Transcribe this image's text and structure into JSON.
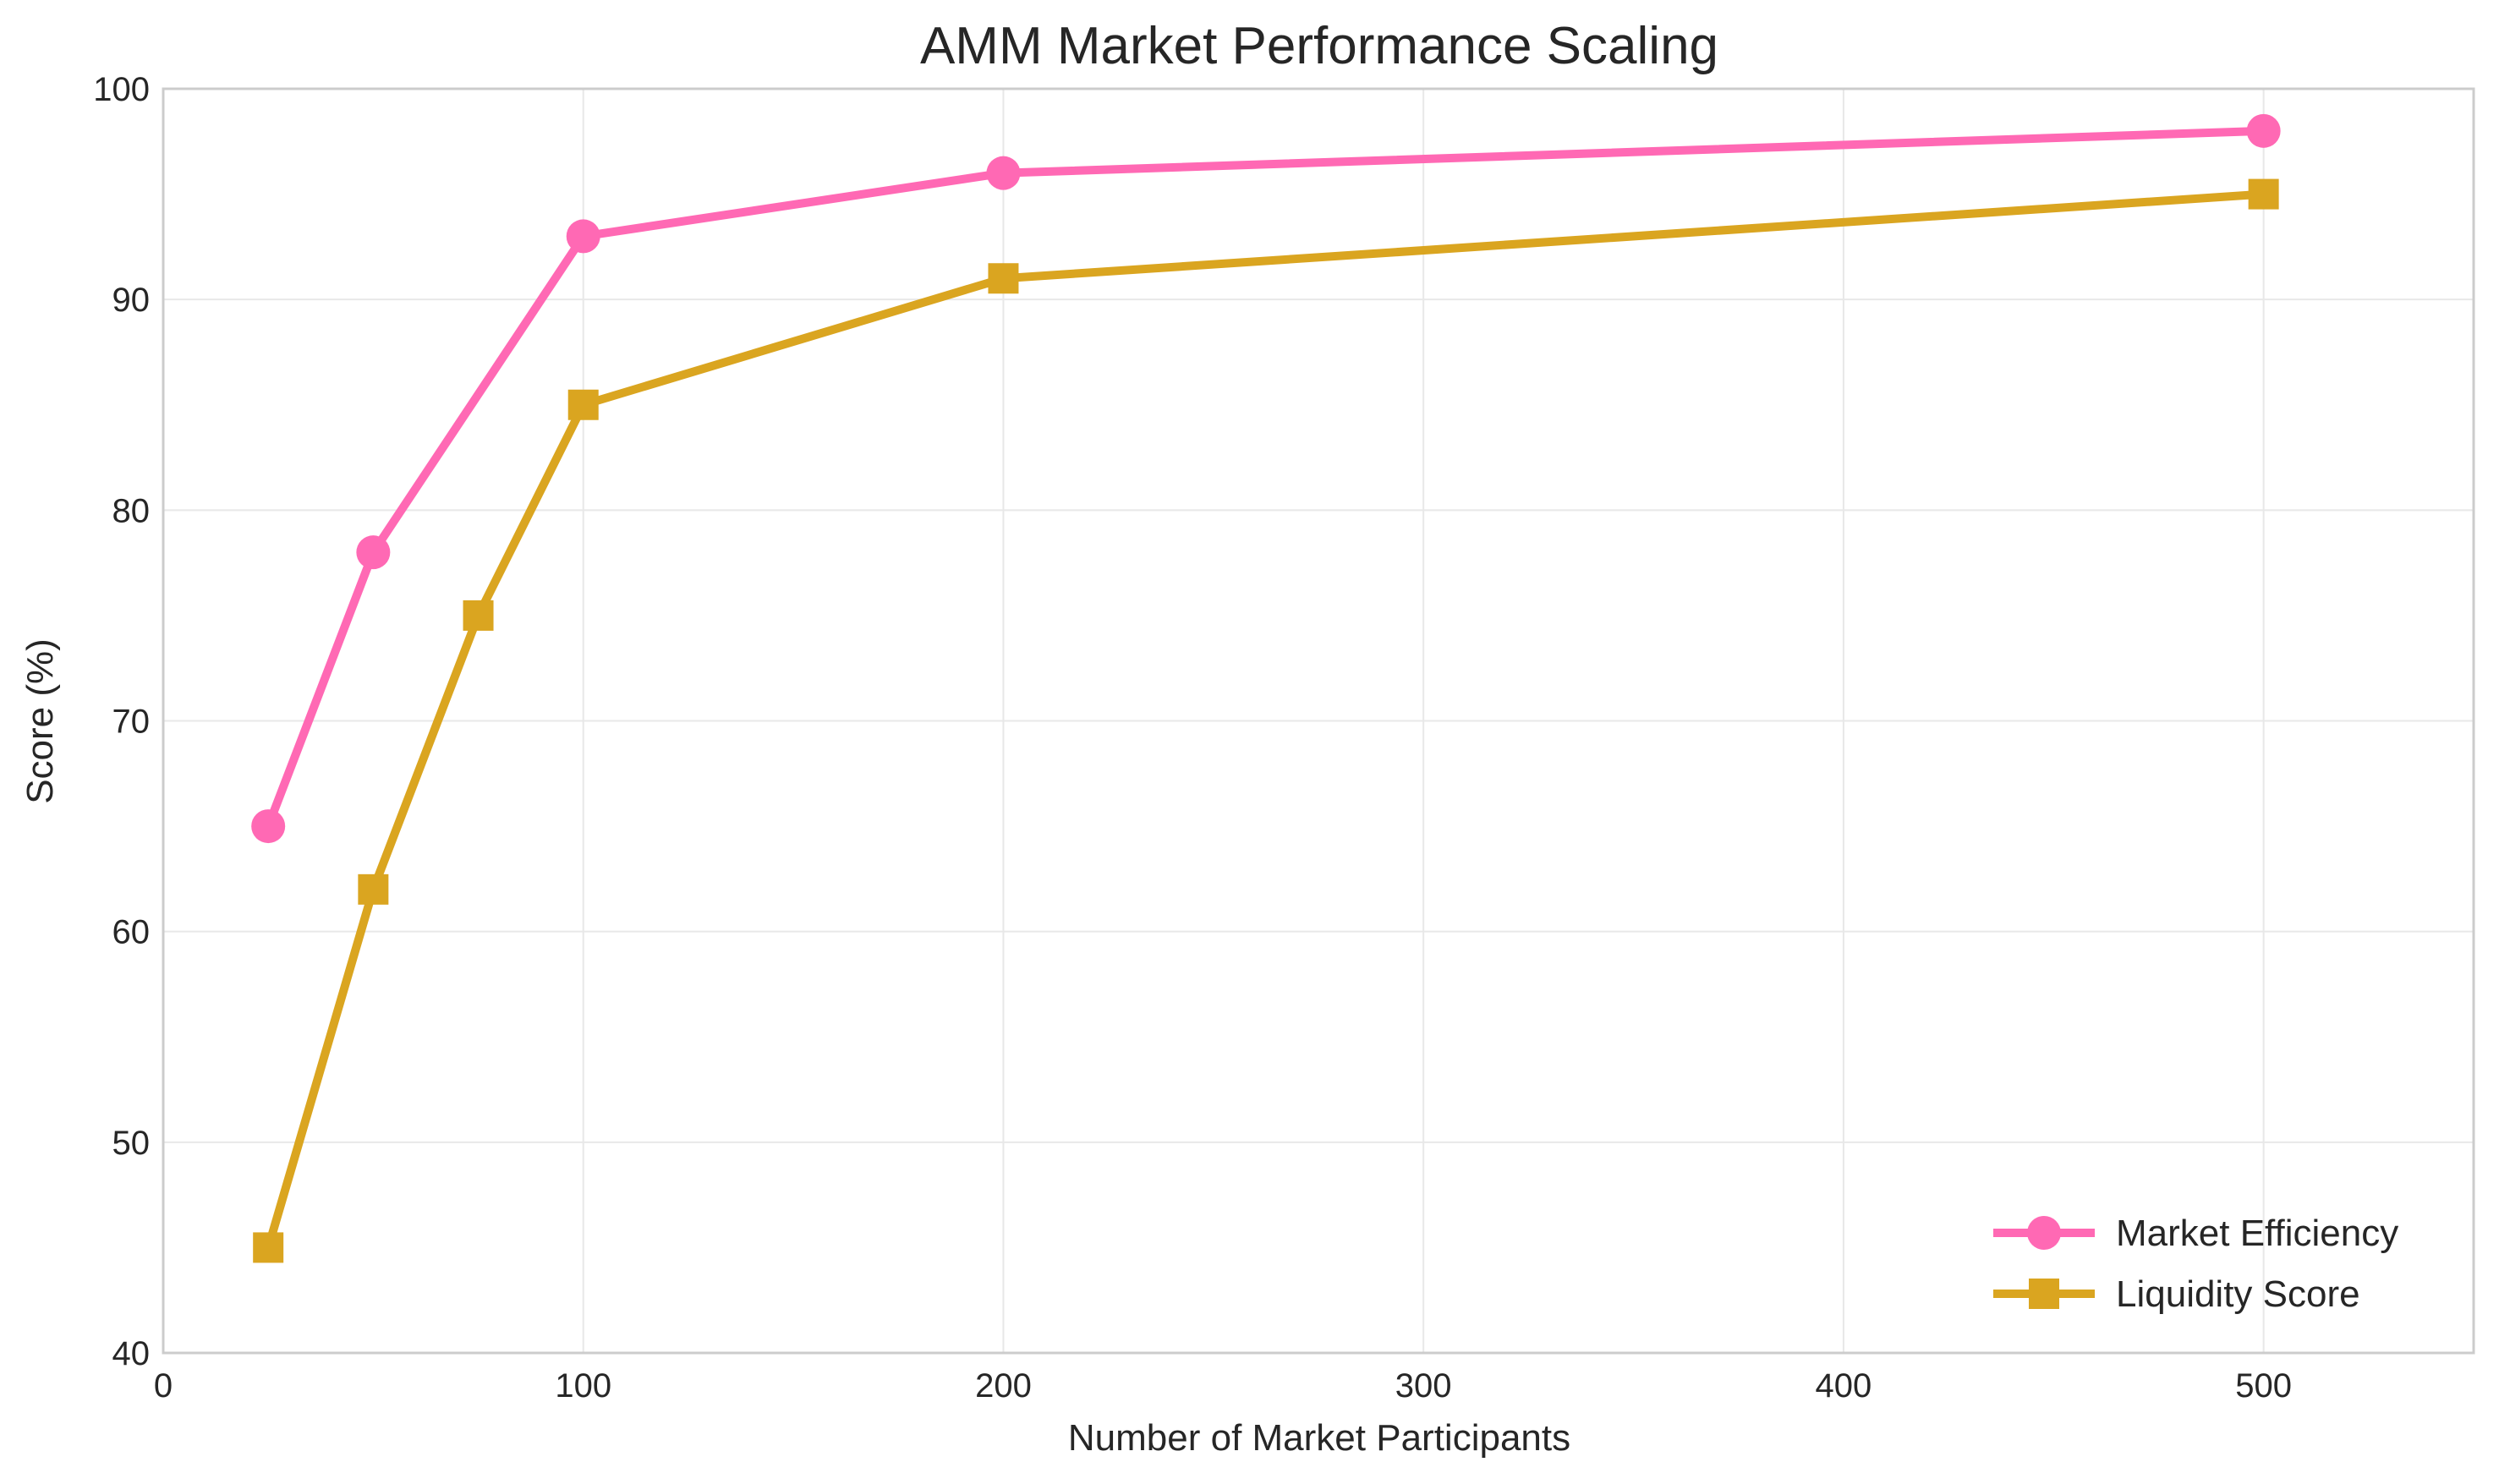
{
  "chart_data": {
    "type": "line",
    "title": "AMM Market Performance Scaling",
    "xlabel": "Number of Market Participants",
    "ylabel": "Score (%)",
    "xlim": [
      0,
      550
    ],
    "ylim": [
      40,
      100
    ],
    "xticks": [
      0,
      100,
      200,
      300,
      400,
      500
    ],
    "yticks": [
      40,
      50,
      60,
      70,
      80,
      90,
      100
    ],
    "grid": true,
    "legend_position": "bottom-right",
    "series": [
      {
        "name": "Market Efficiency",
        "color": "#ff69b4",
        "marker": "circle",
        "points": [
          {
            "x": 25,
            "y": 65
          },
          {
            "x": 50,
            "y": 78
          },
          {
            "x": 100,
            "y": 93
          },
          {
            "x": 200,
            "y": 96
          },
          {
            "x": 500,
            "y": 98
          }
        ]
      },
      {
        "name": "Liquidity Score",
        "color": "#daa520",
        "marker": "square",
        "points": [
          {
            "x": 25,
            "y": 45
          },
          {
            "x": 50,
            "y": 62
          },
          {
            "x": 75,
            "y": 75
          },
          {
            "x": 100,
            "y": 85
          },
          {
            "x": 200,
            "y": 91
          },
          {
            "x": 500,
            "y": 95
          }
        ]
      }
    ]
  }
}
